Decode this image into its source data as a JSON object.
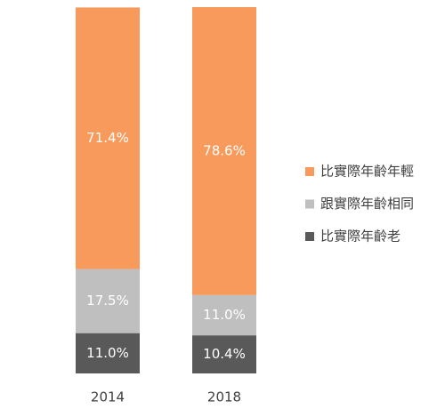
{
  "chart_data": {
    "type": "stacked-bar",
    "categories": [
      "2014",
      "2018"
    ],
    "series": [
      {
        "name": "比實際年齡年輕",
        "color": "#f79a5b",
        "values": [
          71.4,
          78.6
        ],
        "value_labels": [
          "71.4%",
          "78.6%"
        ]
      },
      {
        "name": "跟實際年齡相同",
        "color": "#bfbfbf",
        "values": [
          17.5,
          11.0
        ],
        "value_labels": [
          "17.5%",
          "11.0%"
        ]
      },
      {
        "name": "比實際年齡老",
        "color": "#595959",
        "values": [
          11.0,
          10.4
        ],
        "value_labels": [
          "11.0%",
          "10.4%"
        ]
      }
    ]
  }
}
